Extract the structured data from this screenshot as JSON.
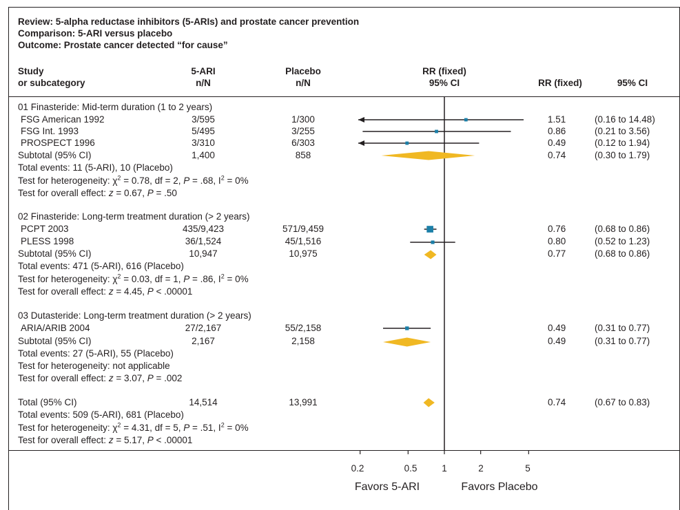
{
  "header": {
    "review": "Review: 5-alpha reductase inhibitors (5-ARIs)  and prostate cancer prevention",
    "comparison": "Comparison: 5-ARI versus placebo",
    "outcome": "Outcome: Prostate cancer detected “for cause”"
  },
  "columns": {
    "study1": "Study",
    "study2": "or subcategory",
    "ari1": "5-ARI",
    "ari2": "n/N",
    "pla1": "Placebo",
    "pla2": "n/N",
    "rr1": "RR (fixed)",
    "rr2": "95% CI",
    "rrval": "RR (fixed)",
    "ci": "95% CI"
  },
  "groups": [
    {
      "title": "01 Finasteride: Mid-term duration (1 to 2 years)",
      "studies": [
        {
          "name": "FSG American 1992",
          "ari": "3/595",
          "placebo": "1/300",
          "rr": "1.51",
          "ci": "(0.16 to 14.48)"
        },
        {
          "name": "FSG Int. 1993",
          "ari": "5/495",
          "placebo": "3/255",
          "rr": "0.86",
          "ci": "(0.21 to 3.56)"
        },
        {
          "name": "PROSPECT 1996",
          "ari": "3/310",
          "placebo": "6/303",
          "rr": "0.49",
          "ci": "(0.12 to 1.94)"
        }
      ],
      "subtotal": {
        "name": "Subtotal (95% CI)",
        "ari": "1,400",
        "placebo": "858",
        "rr": "0.74",
        "ci": "(0.30 to 1.79)"
      },
      "events": "Total events: 11 (5-ARI), 10 (Placebo)",
      "het": {
        "pre": "Test for heterogeneity: χ",
        "mid": " = 0.78, df = 2, ",
        "p": " = .68, I",
        "post": " = 0%"
      },
      "overall": {
        "pre": "Test for overall effect: ",
        "z": " = 0.67, ",
        "p": " = .50"
      }
    },
    {
      "title": "02 Finasteride: Long-term treatment duration (> 2 years)",
      "studies": [
        {
          "name": "PCPT 2003",
          "ari": "435/9,423",
          "placebo": "571/9,459",
          "rr": "0.76",
          "ci": "(0.68 to 0.86)"
        },
        {
          "name": "PLESS 1998",
          "ari": "36/1,524",
          "placebo": "45/1,516",
          "rr": "0.80",
          "ci": "(0.52 to 1.23)"
        }
      ],
      "subtotal": {
        "name": "Subtotal (95% CI)",
        "ari": "10,947",
        "placebo": "10,975",
        "rr": "0.77",
        "ci": "(0.68 to 0.86)"
      },
      "events": "Total events: 471 (5-ARI), 616 (Placebo)",
      "het": {
        "pre": "Test for heterogeneity: χ",
        "mid": " = 0.03, df = 1, ",
        "p": " = .86, I",
        "post": " = 0%"
      },
      "overall": {
        "pre": "Test for overall effect: ",
        "z": " = 4.45, ",
        "p": " < .00001"
      }
    },
    {
      "title": "03 Dutasteride: Long-term treatment duration (> 2 years)",
      "studies": [
        {
          "name": "ARIA/ARIB 2004",
          "ari": "27/2,167",
          "placebo": "55/2,158",
          "rr": "0.49",
          "ci": "(0.31 to 0.77)"
        }
      ],
      "subtotal": {
        "name": "Subtotal (95% CI)",
        "ari": "2,167",
        "placebo": "2,158",
        "rr": "0.49",
        "ci": "(0.31 to 0.77)"
      },
      "events": "Total events: 27 (5-ARI), 55 (Placebo)",
      "het_text": "Test for heterogeneity: not applicable",
      "overall": {
        "pre": "Test for overall effect: ",
        "z": " = 3.07, ",
        "p": " = .002"
      }
    }
  ],
  "total": {
    "name": "Total (95% CI)",
    "ari": "14,514",
    "placebo": "13,991",
    "rr": "0.74",
    "ci": "(0.67 to 0.83)",
    "events": "Total events: 509 (5-ARI), 681 (Placebo)",
    "het": {
      "pre": "Test for heterogeneity: χ",
      "mid": " = 4.31, df = 5, ",
      "p": " = .51, I",
      "post": " = 0%"
    },
    "overall": {
      "pre": "Test for overall effect: ",
      "z": " = 5.17, ",
      "p": " < .00001"
    }
  },
  "symbols": {
    "two": "2",
    "P": "P",
    "z": "z"
  },
  "axis": {
    "ticks": [
      "0.2",
      "0.5",
      "1",
      "2",
      "5"
    ],
    "favors_left": "Favors 5-ARI",
    "favors_right": "Favors Placebo"
  },
  "colors": {
    "square": "#1b7fa8",
    "diamond": "#f0b823",
    "line": "#231f20"
  },
  "chart_data": {
    "type": "forest",
    "scale": "log",
    "xlim": [
      0.1,
      10
    ],
    "ticks": [
      0.2,
      0.5,
      1,
      2,
      5
    ],
    "xlabel_left": "Favors 5-ARI",
    "xlabel_right": "Favors Placebo",
    "studies": [
      {
        "name": "FSG American 1992",
        "rr": 1.51,
        "lo": 0.16,
        "hi": 14.48,
        "weight": 0.6
      },
      {
        "name": "FSG Int. 1993",
        "rr": 0.86,
        "lo": 0.21,
        "hi": 3.56,
        "weight": 0.6
      },
      {
        "name": "PROSPECT 1996",
        "rr": 0.49,
        "lo": 0.12,
        "hi": 1.94,
        "weight": 0.6
      },
      {
        "name": "PCPT 2003",
        "rr": 0.76,
        "lo": 0.68,
        "hi": 0.86,
        "weight": 2.2
      },
      {
        "name": "PLESS 1998",
        "rr": 0.8,
        "lo": 0.52,
        "hi": 1.23,
        "weight": 0.7
      },
      {
        "name": "ARIA/ARIB 2004",
        "rr": 0.49,
        "lo": 0.31,
        "hi": 0.77,
        "weight": 0.8
      }
    ],
    "subtotals": [
      {
        "name": "01 Subtotal",
        "rr": 0.74,
        "lo": 0.3,
        "hi": 1.79
      },
      {
        "name": "02 Subtotal",
        "rr": 0.77,
        "lo": 0.68,
        "hi": 0.86
      },
      {
        "name": "03 Subtotal",
        "rr": 0.49,
        "lo": 0.31,
        "hi": 0.77
      },
      {
        "name": "Total",
        "rr": 0.74,
        "lo": 0.67,
        "hi": 0.83
      }
    ]
  }
}
